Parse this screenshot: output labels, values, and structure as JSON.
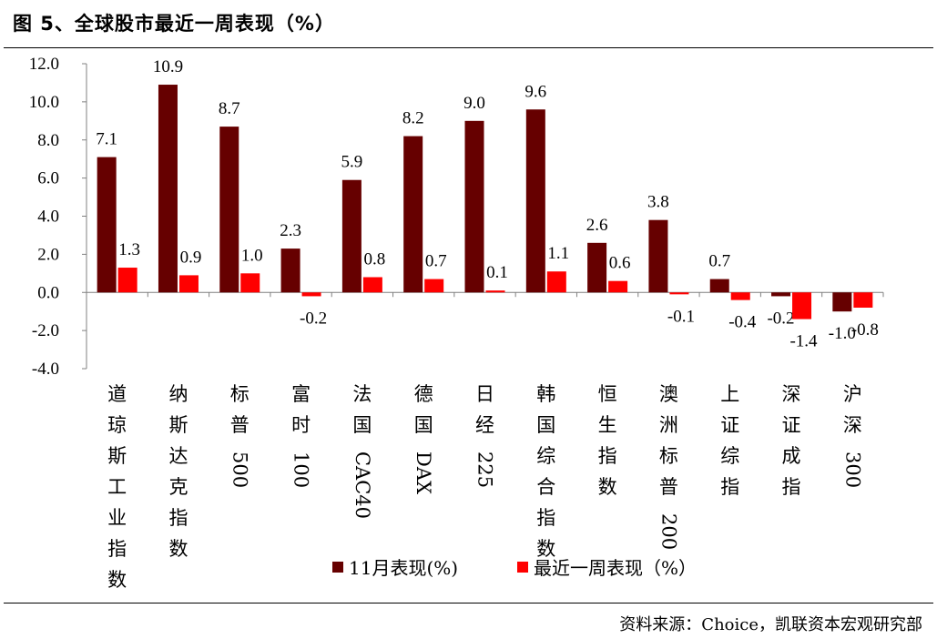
{
  "title": "图 5、全球股市最近一周表现（%）",
  "source": "资料来源：Choice，凯联资本宏观研究部",
  "colors": {
    "series1": "#660000",
    "series2": "#ff0000"
  },
  "chart_data": {
    "type": "bar",
    "categories": [
      "道琼斯工业指数",
      "纳斯达克指数",
      "标普500",
      "富时100",
      "法国CAC40",
      "德国DAX",
      "日经225",
      "韩国综合指数",
      "恒生指数",
      "澳洲标普200",
      "上证综指",
      "深证成指",
      "沪深300"
    ],
    "series": [
      {
        "name": "11月表现(%)",
        "values": [
          7.1,
          10.9,
          8.7,
          2.3,
          5.9,
          8.2,
          9.0,
          9.6,
          2.6,
          3.8,
          0.7,
          -0.2,
          -1.0
        ]
      },
      {
        "name": "最近一周表现（%）",
        "values": [
          1.3,
          0.9,
          1.0,
          -0.2,
          0.8,
          0.7,
          0.1,
          1.1,
          0.6,
          -0.1,
          -0.4,
          -1.4,
          -0.8
        ]
      }
    ],
    "ylim": [
      -4.0,
      12.0
    ],
    "yticks": [
      "12.0",
      "10.0",
      "8.0",
      "6.0",
      "4.0",
      "2.0",
      "0.0",
      "-2.0",
      "-4.0"
    ],
    "grid": false,
    "legend": "bottom"
  }
}
